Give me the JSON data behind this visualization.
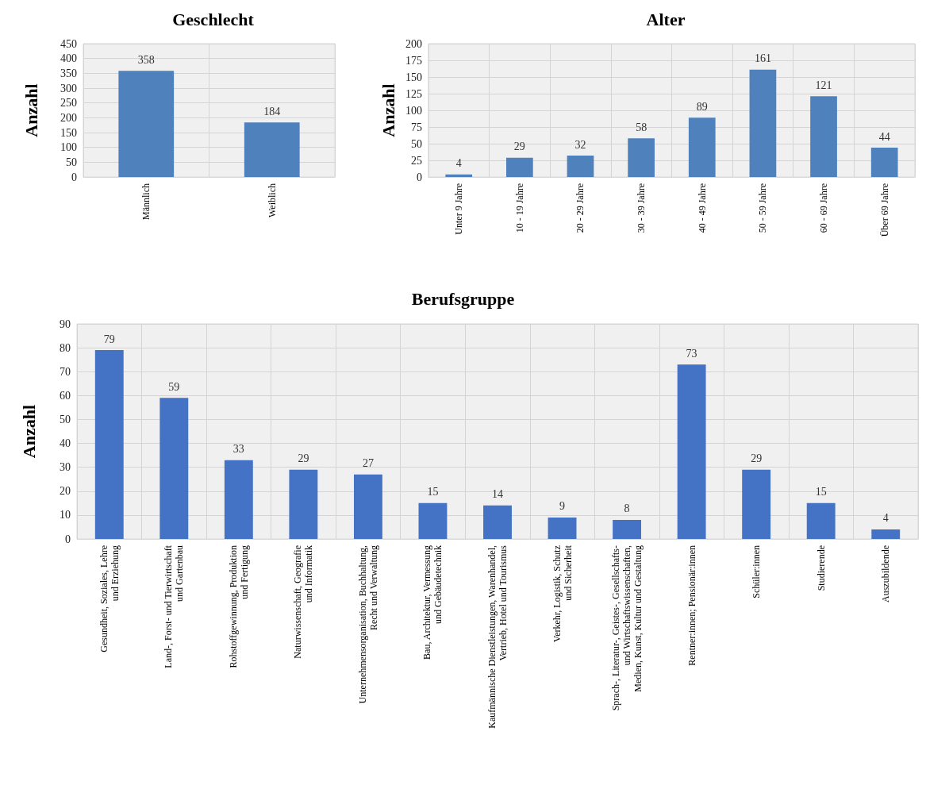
{
  "chart_data": [
    {
      "type": "bar",
      "title": "Geschlecht",
      "ylabel": "Anzahl",
      "categories": [
        "Männlich",
        "Weiblich"
      ],
      "values": [
        358,
        184
      ],
      "color": "#4f81bd",
      "ylim": [
        0,
        450
      ],
      "yticks": [
        0,
        50,
        100,
        150,
        200,
        250,
        300,
        350,
        400,
        450
      ],
      "grid": true,
      "data_labels": true
    },
    {
      "type": "bar",
      "title": "Alter",
      "ylabel": "Anzahl",
      "categories": [
        "Unter 9 Jahre",
        "10 - 19 Jahre",
        "20 - 29 Jahre",
        "30 - 39 Jahre",
        "40 - 49 Jahre",
        "50 - 59 Jahre",
        "60 - 69 Jahre",
        "Über 69 Jahre"
      ],
      "values": [
        4,
        29,
        32,
        58,
        89,
        161,
        121,
        44
      ],
      "color": "#4f81bd",
      "ylim": [
        0,
        200
      ],
      "yticks": [
        0,
        25,
        50,
        75,
        100,
        125,
        150,
        175,
        200
      ],
      "grid": true,
      "data_labels": true
    },
    {
      "type": "bar",
      "title": "Berufsgruppe",
      "ylabel": "Anzahl",
      "categories": [
        "Gesundheit, Soziales, Lehre\nund Erziehung",
        "Land-, Forst- und Tierwirtschaft\nund Gartenbau",
        "Rohstoffgewinnung, Produktion\nund Fertigung",
        "Naturwissenschaft, Geografie\nund Informatik",
        "Unternehmensorganisation, Buchhaltung,\nRecht und Verwaltung",
        "Bau, Architektur, Vermessung\nund Gebäudetechnik",
        "Kaufmännische Dienstleistungen, Warenhandel,\nVertrieb, Hotel und Tourismus",
        "Verkehr, Logistik, Schutz\nund Sicherheit",
        "Sprach-, Literatur-, Geistes-, Gesellschafts-\nund Wirtschaftswissenschaften,\nMedien, Kunst, Kultur und Gestaltung",
        "Rentner:innen; Pensionär:innen",
        "Schüler:innen",
        "Studierende",
        "Auszubildende"
      ],
      "values": [
        79,
        59,
        33,
        29,
        27,
        15,
        14,
        9,
        8,
        73,
        29,
        15,
        4
      ],
      "color": "#4472c4",
      "ylim": [
        0,
        90
      ],
      "yticks": [
        0,
        10,
        20,
        30,
        40,
        50,
        60,
        70,
        80,
        90
      ],
      "grid": true,
      "data_labels": true
    }
  ]
}
